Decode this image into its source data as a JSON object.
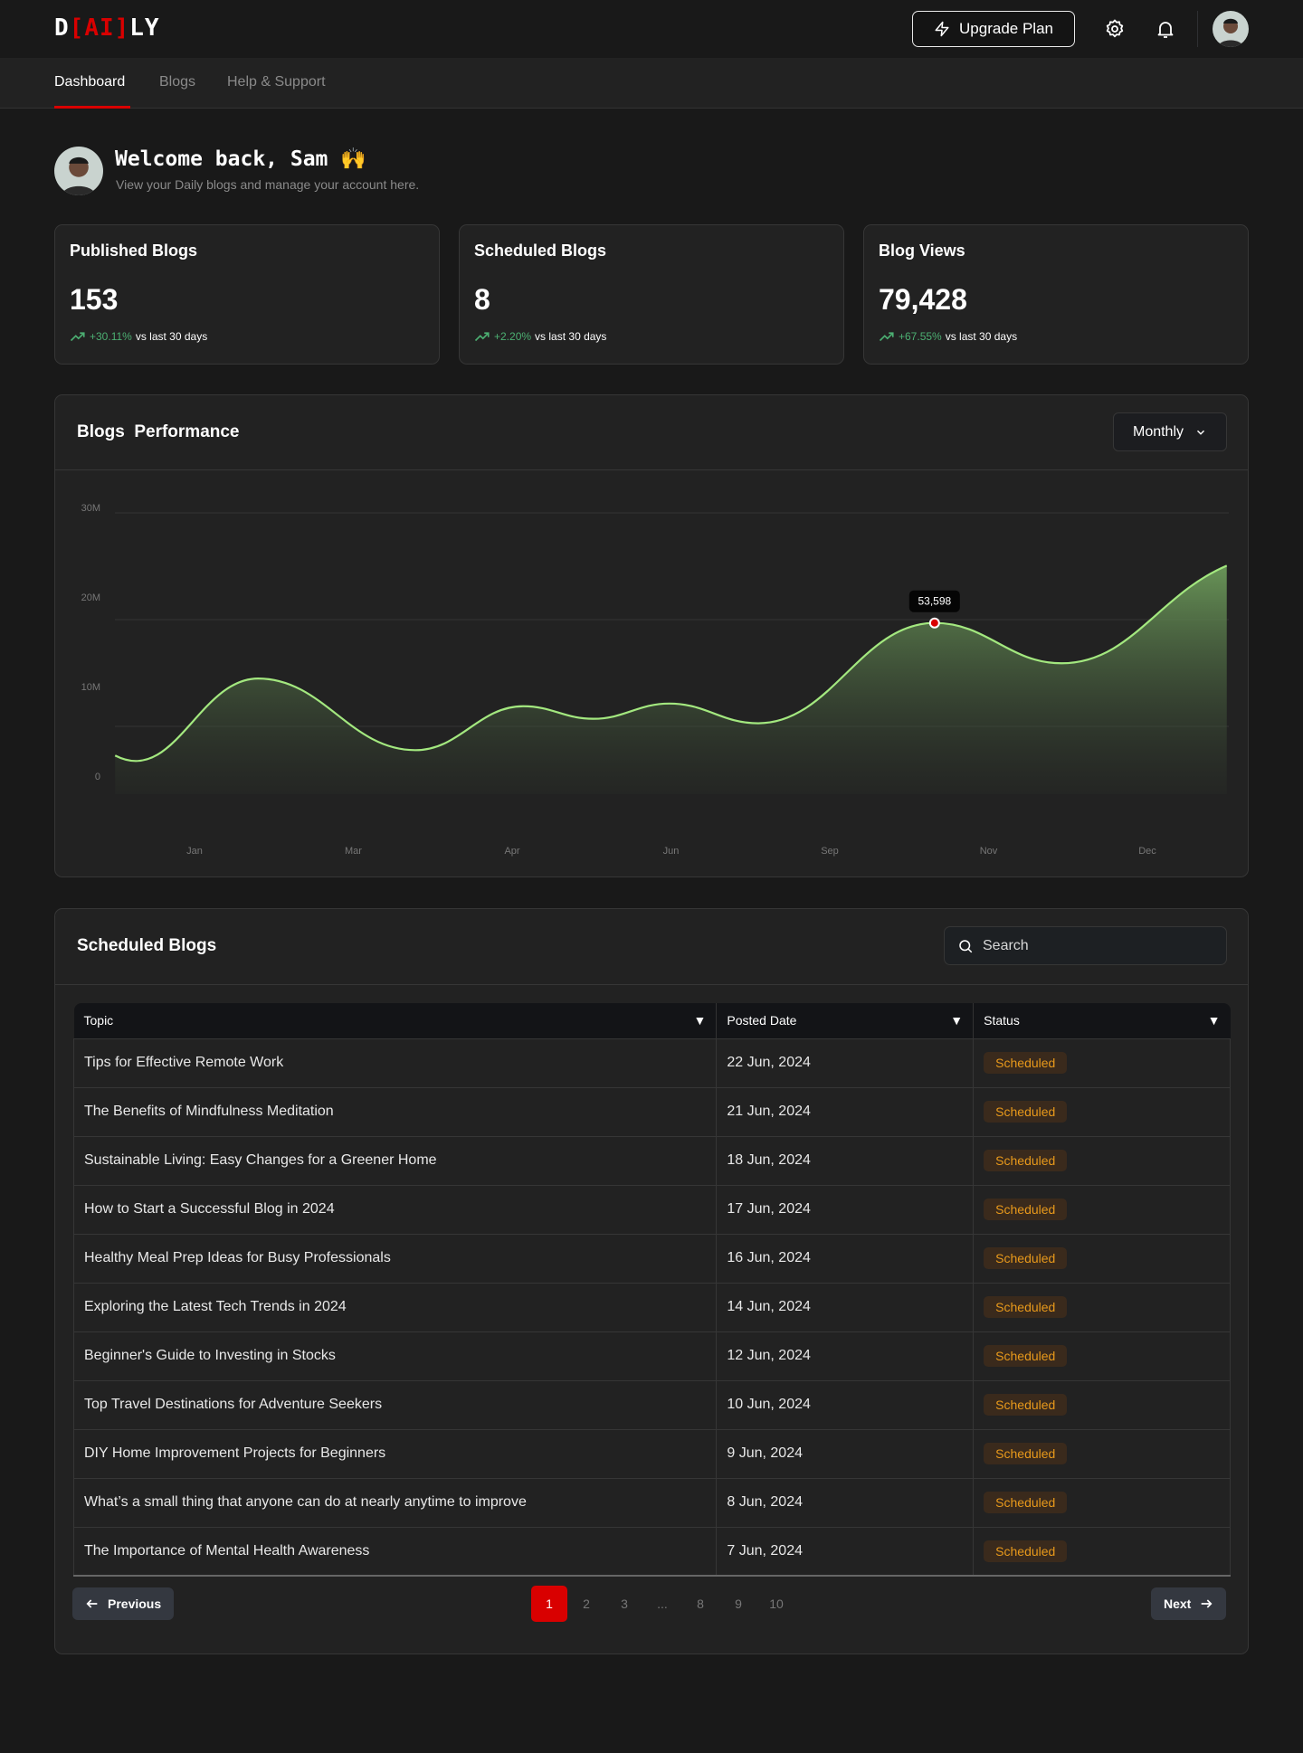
{
  "header": {
    "logo": {
      "left": "D",
      "bracket_open": "[",
      "mid": "AI",
      "bracket_close": "]",
      "right": "LY"
    },
    "upgrade_label": "Upgrade Plan",
    "icons": [
      "zap-icon",
      "gear-icon",
      "bell-icon"
    ]
  },
  "nav": {
    "tabs": [
      {
        "label": "Dashboard",
        "active": true
      },
      {
        "label": "Blogs"
      },
      {
        "label": "Help & Support"
      }
    ]
  },
  "welcome": {
    "title": "Welcome back, Sam 🙌",
    "subtitle": "View your Daily blogs and manage your account here."
  },
  "stats": [
    {
      "title": "Published Blogs",
      "value": "153",
      "change": "+30.11%",
      "period": "vs last 30 days"
    },
    {
      "title": "Scheduled Blogs",
      "value": "8",
      "change": "+2.20%",
      "period": "vs last 30 days"
    },
    {
      "title": "Blog Views",
      "value": "79,428",
      "change": "+67.55%",
      "period": "vs last 30 days"
    }
  ],
  "performance": {
    "title": "Blogs  Performance",
    "range": "Monthly"
  },
  "chart_data": {
    "type": "area",
    "categories": [
      "Jan",
      "Mar",
      "Apr",
      "Jun",
      "Sep",
      "Nov",
      "Dec"
    ],
    "yticks": [
      "30M",
      "20M",
      "10M",
      "0"
    ],
    "ylim": [
      0,
      30
    ],
    "grid": true,
    "points": [
      {
        "x": -0.5,
        "y": 2.3
      },
      {
        "x": 0.4,
        "y": 10.9
      },
      {
        "x": 1.39,
        "y": 2.9
      },
      {
        "x": 2.07,
        "y": 7.8
      },
      {
        "x": 2.51,
        "y": 6.4
      },
      {
        "x": 2.99,
        "y": 8.1
      },
      {
        "x": 3.55,
        "y": 5.9
      },
      {
        "x": 4.66,
        "y": 17.1
      },
      {
        "x": 5.46,
        "y": 12.6
      },
      {
        "x": 6.5,
        "y": 23.5
      }
    ],
    "highlight": {
      "x": 4.66,
      "y": 17.1,
      "label": "53,598"
    },
    "line_color": "#a3e87f",
    "marker_color": "#d90000"
  },
  "scheduled": {
    "title": "Scheduled Blogs",
    "search_placeholder": "Search",
    "columns": [
      "Topic",
      "Posted Date",
      "Status"
    ],
    "rows": [
      {
        "topic": "Tips for Effective Remote Work",
        "date": "22 Jun, 2024",
        "status": "Scheduled"
      },
      {
        "topic": "The Benefits of Mindfulness Meditation",
        "date": "21 Jun, 2024",
        "status": "Scheduled"
      },
      {
        "topic": "Sustainable Living: Easy Changes for a Greener Home",
        "date": "18 Jun, 2024",
        "status": "Scheduled"
      },
      {
        "topic": "How to Start a Successful Blog in 2024",
        "date": "17 Jun, 2024",
        "status": "Scheduled"
      },
      {
        "topic": "Healthy Meal Prep Ideas for Busy Professionals",
        "date": "16 Jun, 2024",
        "status": "Scheduled"
      },
      {
        "topic": "Exploring the Latest Tech Trends in 2024",
        "date": "14 Jun, 2024",
        "status": "Scheduled"
      },
      {
        "topic": "Beginner's Guide to Investing in Stocks",
        "date": "12 Jun, 2024",
        "status": "Scheduled"
      },
      {
        "topic": "Top Travel Destinations for Adventure Seekers",
        "date": "10 Jun, 2024",
        "status": "Scheduled"
      },
      {
        "topic": "DIY Home Improvement Projects for Beginners",
        "date": "9 Jun, 2024",
        "status": "Scheduled"
      },
      {
        "topic": "What’s a small thing that anyone can do at nearly anytime to improve",
        "date": "8 Jun, 2024",
        "status": "Scheduled"
      },
      {
        "topic": "The Importance of Mental Health Awareness",
        "date": "7 Jun, 2024",
        "status": "Scheduled"
      }
    ],
    "pagination": {
      "previous": "Previous",
      "next": "Next",
      "pages": [
        "1",
        "2",
        "3",
        "...",
        "8",
        "9",
        "10"
      ],
      "current": "1"
    }
  },
  "colors": {
    "accent": "#d90000",
    "positive": "#4caf72",
    "badge_text": "#e8991b"
  }
}
